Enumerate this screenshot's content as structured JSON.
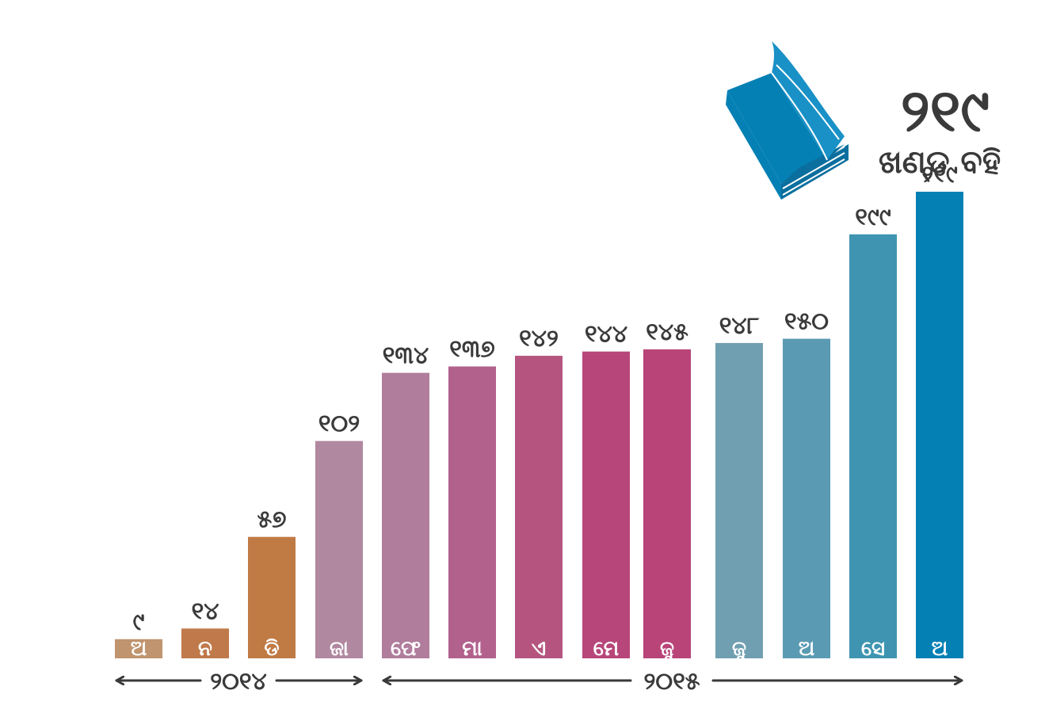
{
  "chart_data": {
    "type": "bar",
    "categories": [
      "ଅ",
      "ନ",
      "ଡି",
      "ଜା",
      "ଫେ",
      "ମା",
      "ଏ",
      "ମେ",
      "ଜୁ",
      "ଜୁ",
      "ଅ",
      "ସେ",
      "ଅ"
    ],
    "values": [
      9,
      14,
      57,
      102,
      134,
      137,
      142,
      144,
      145,
      148,
      150,
      199,
      219
    ],
    "value_labels": [
      "୯",
      "୧୪",
      "୫୭",
      "୧୦୨",
      "୧୩୪",
      "୧୩୭",
      "୧୪୨",
      "୧୪୪",
      "୧୪୫",
      "୧୪୮",
      "୧୫୦",
      "୧୯୯",
      "୨୧୯"
    ],
    "colors": [
      "#c0946e",
      "#c0794a",
      "#c07a44",
      "#b0889f",
      "#b07d9c",
      "#b2618d",
      "#b5557f",
      "#b7477a",
      "#b84478",
      "#709fb1",
      "#5b9ab3",
      "#3f95b1",
      "#0580b4"
    ],
    "ylim": [
      0,
      219
    ],
    "year_groups": [
      {
        "label": "୨୦୧୪",
        "bars": [
          0,
          3
        ]
      },
      {
        "label": "୨୦୧୫",
        "bars": [
          4,
          12
        ]
      }
    ]
  },
  "callout": {
    "number": "୨୧୯",
    "subtitle": "ଖଣ୍ଡ ବହି",
    "icon": "book-icon",
    "icon_color": "#0580b4"
  },
  "axis_color": "#3a3a3a"
}
